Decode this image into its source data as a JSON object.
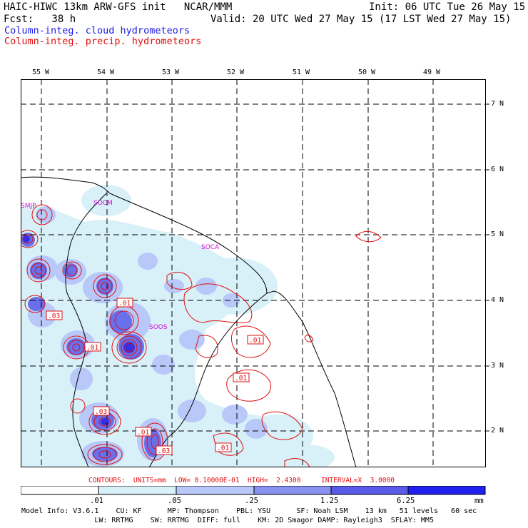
{
  "header": {
    "line1_left": "HAIC-HIWC 13km ARW-GFS init   NCAR/MMM",
    "line1_right": "Init: 06 UTC Tue 26 May 15",
    "line2_left": "Fcst:   38 h",
    "line2_right": "Valid: 20 UTC Wed 27 May 15 (17 LST Wed 27 May 15)",
    "field1": "Column-integ. cloud hydrometeors",
    "field2": "Column-integ. precip. hydrometeors",
    "field1_color": "#1a1ae6",
    "field2_color": "#e01010"
  },
  "map": {
    "lon_labels": [
      "55 W",
      "54 W",
      "53 W",
      "52 W",
      "51 W",
      "50 W",
      "49 W"
    ],
    "lat_labels": [
      "7 N",
      "6 N",
      "5 N",
      "4 N",
      "3 N",
      "2 N"
    ],
    "station_labels": [
      "SMJP",
      "SOCM",
      "SOCA",
      "SOOS"
    ],
    "contour_labels": [
      ".01",
      ".03",
      ".01",
      ".01",
      ".01",
      ".03",
      ".01",
      ".03",
      ".01"
    ],
    "station_color": "#d010d0",
    "contour_color": "#e01010"
  },
  "contours_line": "CONTOURS:  UNITS=mm  LOW= 0.10000E-01  HIGH=  2.4300     INTERVAL=X  3.0000",
  "colorbar": {
    "ticks": [
      ".01",
      ".05",
      ".25",
      "1.25",
      "6.25"
    ],
    "unit": "mm",
    "colors": [
      "#ffffff",
      "#d8f0f8",
      "#b8c8f8",
      "#8890f0",
      "#5a5ae8",
      "#2020ee"
    ]
  },
  "model_info": {
    "line1": "Model Info: V3.6.1    CU: KF      MP: Thompson    PBL: YSU      SF: Noah LSM    13 km   51 levels   60 sec",
    "line2": "                 LW: RRTMG    SW: RRTMG  DIFF: full    KM: 2D Smagor DAMP: Rayleigh3  SFLAY: MM5"
  }
}
